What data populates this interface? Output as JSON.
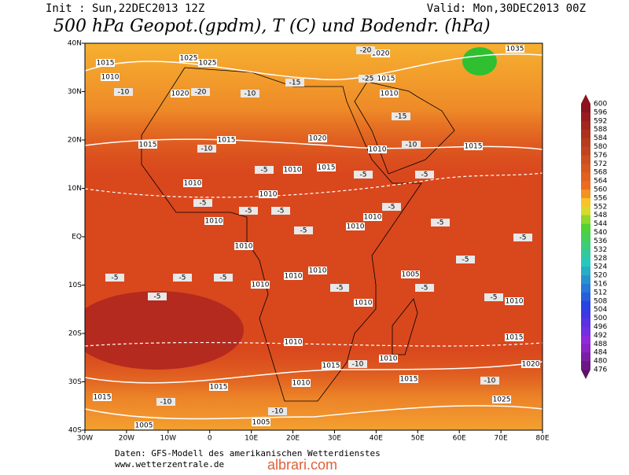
{
  "header": {
    "init": "Init : Sun,22DEC2013 12Z",
    "valid": "Valid: Mon,30DEC2013 00Z",
    "title": "500 hPa Geopot.(gpdm), T (C) und Bodendr. (hPa)"
  },
  "map": {
    "lon_labels": [
      "30W",
      "20W",
      "10W",
      "0",
      "10E",
      "20E",
      "30E",
      "40E",
      "50E",
      "60E",
      "70E",
      "80E"
    ],
    "lat_labels": [
      "40N",
      "30N",
      "20N",
      "10N",
      "EQ",
      "10S",
      "20S",
      "30S",
      "40S"
    ],
    "isobar_labels": [
      1015,
      1010,
      1025,
      1025,
      1020,
      1015,
      1015,
      1020,
      1010,
      1015,
      1010,
      1015,
      1010,
      1010,
      1010,
      1010,
      1010,
      1010,
      1010,
      1010,
      1005,
      1010,
      1010,
      1010,
      1015,
      1010,
      1010,
      1020,
      1015,
      1010,
      1015,
      1015,
      1015,
      1025,
      1005,
      1005,
      1020,
      1015,
      1010,
      1035
    ],
    "isotherm_labels": [
      -10,
      -10,
      -10,
      -10,
      -10,
      -10,
      -10,
      -10,
      -15,
      -15,
      -20,
      -20,
      -25,
      -5,
      -5,
      -5,
      -5,
      -5,
      -5,
      -5,
      -5,
      -5,
      -5,
      -5,
      -5,
      -5,
      -5,
      -5,
      -5,
      -5,
      -5
    ]
  },
  "legend": {
    "labels": [
      600,
      596,
      592,
      588,
      584,
      580,
      576,
      572,
      568,
      564,
      560,
      556,
      552,
      548,
      544,
      540,
      536,
      532,
      528,
      524,
      520,
      516,
      512,
      508,
      504,
      500,
      496,
      492,
      488,
      484,
      480,
      476
    ]
  },
  "footer": {
    "source": "Daten: GFS-Modell des amerikanischen Wetterdienstes",
    "url": "www.wetterzentrale.de",
    "watermark": "albrari.com"
  }
}
